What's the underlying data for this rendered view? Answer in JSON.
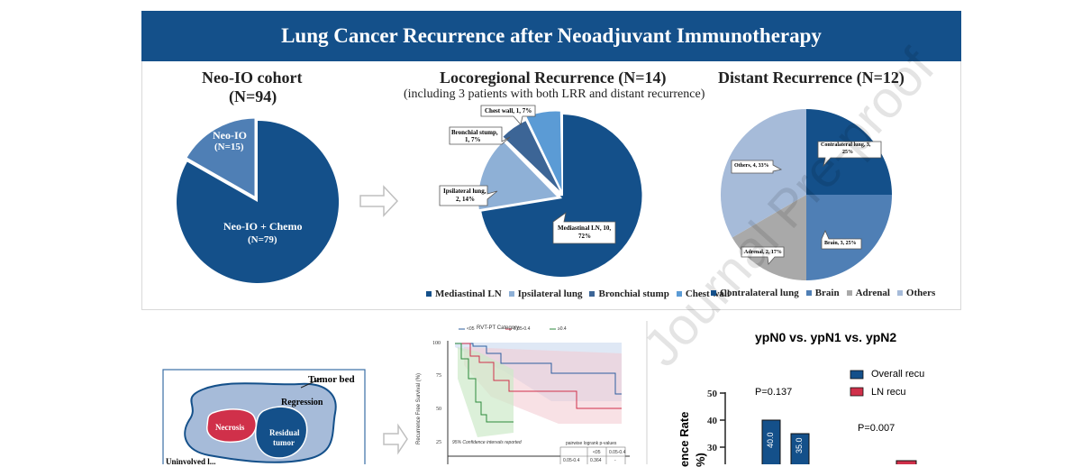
{
  "title": "Lung Cancer Recurrence after Neoadjuvant Immunotherapy",
  "colors": {
    "banner": "#14508a",
    "dark_blue": "#14508a",
    "mid_blue": "#4f7fb5",
    "light_blue": "#8eb0d6",
    "sky": "#5b9bd5",
    "grey": "#a9a9a9",
    "red": "#d0304a"
  },
  "panel_cohort": {
    "title_line1": "Neo-IO cohort",
    "title_line2": "(N=94)",
    "slice1_line1": "Neo-IO",
    "slice1_line2": "(N=15)",
    "slice2_line1": "Neo-IO + Chemo",
    "slice2_line2": "(N=79)"
  },
  "panel_lrr": {
    "title": "Locoregional Recurrence (N=14)",
    "subtitle": "(including 3 patients with both LRR and distant recurrence)",
    "callouts": {
      "chest_wall": "Chest wall, 1, 7%",
      "bronchial_1": "Bronchial stump,",
      "bronchial_2": "1, 7%",
      "ipsilateral_1": "Ipsilateral lung,",
      "ipsilateral_2": "2, 14%",
      "mediastinal_1": "Mediastinal LN, 10,",
      "mediastinal_2": "72%"
    },
    "legend": [
      "Mediastinal LN",
      "Ipsilateral lung",
      "Bronchial stump",
      "Chest wall"
    ]
  },
  "panel_distant": {
    "title": "Distant Recurrence (N=12)",
    "callouts": {
      "contralateral_1": "Contralateral lung, 3,",
      "contralateral_2": "25%",
      "brain": "Brain, 3, 25%",
      "adrenal": "Adrenal, 2, 17%",
      "others": "Others, 4, 33%"
    },
    "legend": [
      "Contralateral lung",
      "Brain",
      "Adrenal",
      "Others"
    ]
  },
  "panel_tumor": {
    "tumor_bed": "Tumor bed",
    "regression": "Regression",
    "necrosis": "Necrosis",
    "residual_1": "Residual",
    "residual_2": "tumor",
    "cut_text": "Uninvolved l..."
  },
  "panel_km": {
    "title": "RVT-PT Category",
    "legend": [
      "<05",
      "0.05-0.4",
      "≥0.4"
    ],
    "ylabel": "Recurrence Free Survival (%)",
    "ci_note": "95% Confidence intervals reported",
    "table_title": "pairwise logrank p-values",
    "table_header": [
      "",
      "<05",
      "0.05-0.4"
    ],
    "table_row": [
      "0.05-0.4",
      "0.364",
      "-"
    ]
  },
  "panel_bar": {
    "title": "ypN0 vs. ypN1 vs. ypN2",
    "legend": [
      "Overall recu",
      "LN recu"
    ],
    "p1": "P=0.137",
    "p2": "P=0.007",
    "ylabel_1": "ence Rate",
    "ylabel_2": "%)",
    "bar1": "40.0",
    "bar2": "35.0"
  },
  "watermark": "Journal Pre-proof",
  "chart_data": [
    {
      "type": "pie",
      "title": "Neo-IO cohort (N=94)",
      "labels": [
        "Neo-IO",
        "Neo-IO + Chemo"
      ],
      "values": [
        15,
        79
      ]
    },
    {
      "type": "pie",
      "title": "Locoregional Recurrence (N=14)",
      "labels": [
        "Mediastinal LN",
        "Ipsilateral lung",
        "Bronchial stump",
        "Chest wall"
      ],
      "values": [
        10,
        2,
        1,
        1
      ],
      "percents": [
        72,
        14,
        7,
        7
      ]
    },
    {
      "type": "pie",
      "title": "Distant Recurrence (N=12)",
      "labels": [
        "Contralateral lung",
        "Brain",
        "Adrenal",
        "Others"
      ],
      "values": [
        3,
        3,
        2,
        4
      ],
      "percents": [
        25,
        25,
        17,
        33
      ]
    },
    {
      "type": "bar",
      "title": "ypN0 vs. ypN1 vs. ypN2",
      "series": [
        {
          "name": "Overall recu",
          "values": [
            40.0
          ]
        },
        {
          "name": "LN recu",
          "values": [
            35.0
          ]
        }
      ],
      "ylim_visible": [
        20,
        50
      ],
      "yticks": [
        30,
        40,
        50
      ]
    }
  ]
}
